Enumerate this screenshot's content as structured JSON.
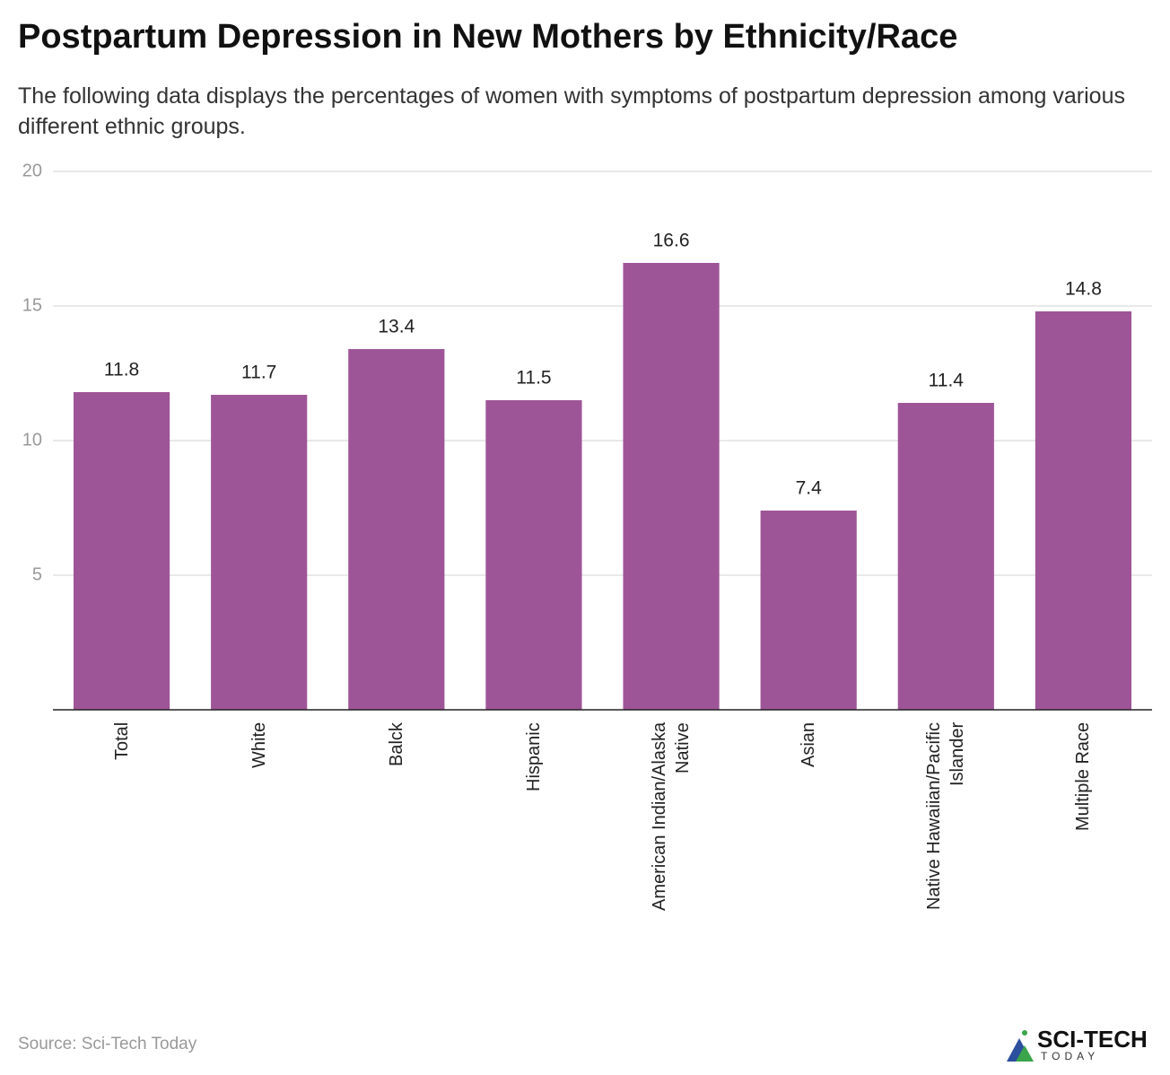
{
  "chart_data": {
    "type": "bar",
    "title": "Postpartum Depression in New Mothers by Ethnicity/Race",
    "subtitle": "The following data displays the percentages of women with symptoms of postpartum depression among various different ethnic groups.",
    "categories": [
      "Total",
      "White",
      "Balck",
      "Hispanic",
      "American Indian/Alaska Native",
      "Asian",
      "Native Hawaiian/Pacific Islander",
      "Multiple Race"
    ],
    "values": [
      11.8,
      11.7,
      13.4,
      11.5,
      16.6,
      7.4,
      11.4,
      14.8
    ],
    "color": "#9e5597",
    "ylim": [
      0,
      20
    ],
    "yticks": [
      5,
      10,
      15,
      20
    ],
    "grid": true,
    "source": "Source: Sci-Tech Today"
  },
  "logo": {
    "name": "SCI-TECH",
    "tagline": "TODAY"
  }
}
